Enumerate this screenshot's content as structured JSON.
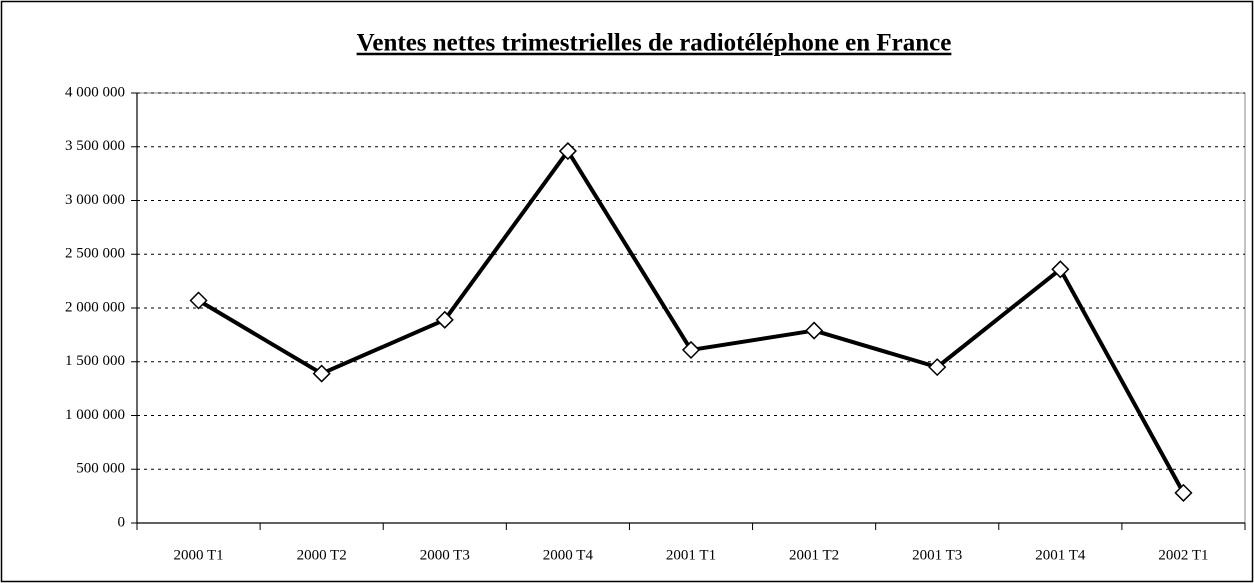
{
  "chart_data": {
    "type": "line",
    "title": "Ventes nettes trimestrielles de radiotéléphone en France",
    "categories": [
      "2000 T1",
      "2000 T2",
      "2000 T3",
      "2000 T4",
      "2001 T1",
      "2001 T2",
      "2001 T3",
      "2001 T4",
      "2002 T1"
    ],
    "series": [
      {
        "name": "Ventes nettes",
        "color": "#000000",
        "values": [
          2070000,
          1390000,
          1890000,
          3460000,
          1610000,
          1790000,
          1450000,
          2360000,
          280000
        ]
      }
    ],
    "ylim": [
      0,
      4000000
    ],
    "yticks": [
      0,
      {
        "value": 500000,
        "label": "500 000"
      },
      {
        "value": 1000000,
        "label": "1 000 000"
      },
      {
        "value": 1500000,
        "label": "1 500 000"
      },
      {
        "value": 2000000,
        "label": "2 000 000"
      },
      {
        "value": 2500000,
        "label": "2 500 000"
      },
      {
        "value": 3000000,
        "label": "3 000 000"
      },
      {
        "value": 3500000,
        "label": "3 500 000"
      },
      {
        "value": 4000000,
        "label": "4 000 000"
      }
    ],
    "grid": true
  }
}
